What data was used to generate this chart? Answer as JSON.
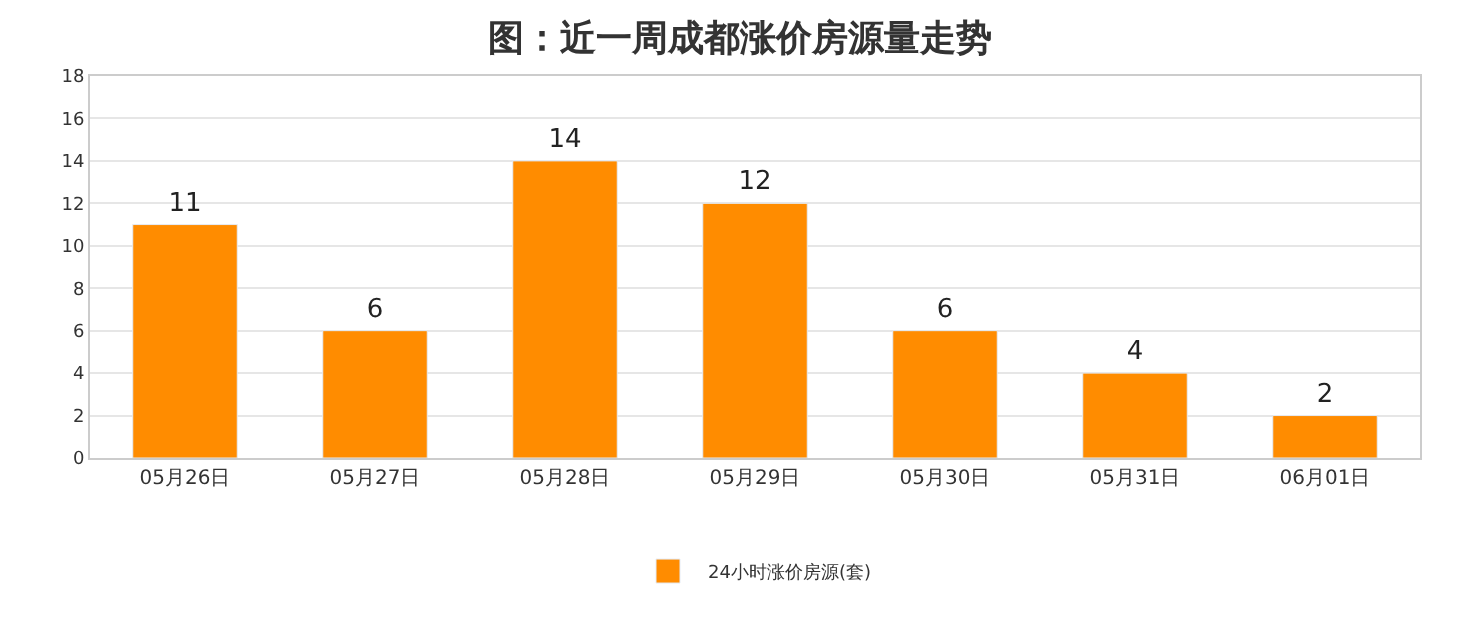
{
  "chart_data": {
    "type": "bar",
    "title": "图：近一周成都涨价房源量走势",
    "categories": [
      "05月26日",
      "05月27日",
      "05月28日",
      "05月29日",
      "05月30日",
      "05月31日",
      "06月01日"
    ],
    "series": [
      {
        "name": "24小时涨价房源(套)",
        "color": "#ff8c00",
        "values": [
          11,
          6,
          14,
          12,
          6,
          4,
          2
        ]
      }
    ],
    "ylim": [
      0,
      18
    ],
    "yticks": [
      0,
      2,
      4,
      6,
      8,
      10,
      12,
      14,
      16,
      18
    ],
    "grid": "y",
    "legend": "bottom",
    "data_labels": true
  }
}
